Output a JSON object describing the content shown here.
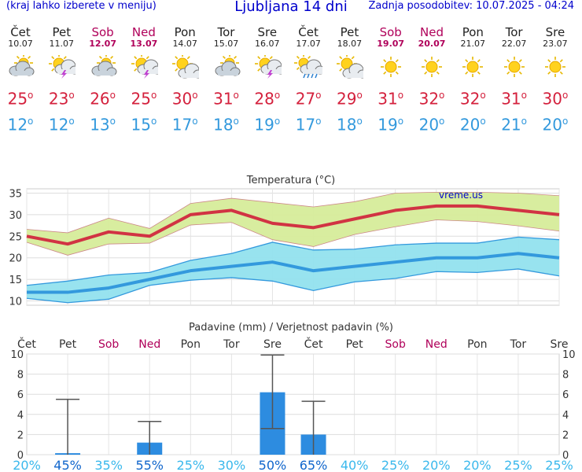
{
  "header": {
    "menu_hint": "(kraj lahko izberete v meniju)",
    "title": "Ljubljana 14 dni",
    "updated": "Zadnja posodobitev: 10.07.2025 - 04:24"
  },
  "days": [
    {
      "name": "Čet",
      "date": "10.07",
      "weekend": false,
      "icon": "partly-cloudy-icon",
      "tmax": "25",
      "tmin": "12"
    },
    {
      "name": "Pet",
      "date": "11.07",
      "weekend": false,
      "icon": "sun-thunder-icon",
      "tmax": "23",
      "tmin": "12"
    },
    {
      "name": "Sob",
      "date": "12.07",
      "weekend": true,
      "icon": "partly-cloudy-icon",
      "tmax": "26",
      "tmin": "13"
    },
    {
      "name": "Ned",
      "date": "13.07",
      "weekend": true,
      "icon": "sun-thunder-icon",
      "tmax": "25",
      "tmin": "15"
    },
    {
      "name": "Pon",
      "date": "14.07",
      "weekend": false,
      "icon": "sun-cloud-icon",
      "tmax": "30",
      "tmin": "17"
    },
    {
      "name": "Tor",
      "date": "15.07",
      "weekend": false,
      "icon": "partly-cloudy-icon",
      "tmax": "31",
      "tmin": "18"
    },
    {
      "name": "Sre",
      "date": "16.07",
      "weekend": false,
      "icon": "sun-thunder-icon",
      "tmax": "28",
      "tmin": "19"
    },
    {
      "name": "Čet",
      "date": "17.07",
      "weekend": false,
      "icon": "sun-rain-icon",
      "tmax": "27",
      "tmin": "17"
    },
    {
      "name": "Pet",
      "date": "18.07",
      "weekend": false,
      "icon": "sun-cloud-icon",
      "tmax": "29",
      "tmin": "18"
    },
    {
      "name": "Sob",
      "date": "19.07",
      "weekend": true,
      "icon": "sun-icon",
      "tmax": "31",
      "tmin": "19"
    },
    {
      "name": "Ned",
      "date": "20.07",
      "weekend": true,
      "icon": "sun-icon",
      "tmax": "32",
      "tmin": "20"
    },
    {
      "name": "Pon",
      "date": "21.07",
      "weekend": false,
      "icon": "sun-icon",
      "tmax": "32",
      "tmin": "20"
    },
    {
      "name": "Tor",
      "date": "22.07",
      "weekend": false,
      "icon": "sun-icon",
      "tmax": "31",
      "tmin": "21"
    },
    {
      "name": "Sre",
      "date": "23.07",
      "weekend": false,
      "icon": "sun-icon",
      "tmax": "30",
      "tmin": "20"
    }
  ],
  "degree_symbol": "o",
  "colors": {
    "title": "#0000cc",
    "weekend": "#b0005a",
    "tmax": "#d4213d",
    "tmin": "#3399dd",
    "max_band": "#d6ec9a",
    "min_band": "#92e2ee",
    "min_line": "#3399dd",
    "max_line": "#d13343",
    "bar": "#2d8ce0",
    "prob": "#3ab8ec"
  },
  "chart_data": [
    {
      "type": "line",
      "title": "Temperatura (°C)",
      "watermark": "vreme.us",
      "ylim": [
        9,
        36
      ],
      "yticks": [
        "10",
        "15",
        "20",
        "25",
        "30",
        "35"
      ],
      "series": [
        {
          "name": "max",
          "values": [
            25,
            23.2,
            26,
            25,
            30,
            31,
            28,
            27,
            29,
            31,
            32,
            32,
            31,
            30
          ],
          "upper": [
            26.6,
            25.8,
            29.2,
            26.8,
            32.6,
            33.8,
            32.8,
            31.8,
            33,
            35,
            35.2,
            35.2,
            35,
            34.4
          ],
          "lower": [
            23.6,
            20.6,
            23.2,
            23.4,
            27.6,
            28.2,
            24.2,
            22.6,
            25.4,
            27.2,
            28.8,
            28.4,
            27.4,
            26.2
          ]
        },
        {
          "name": "min",
          "values": [
            12,
            12,
            13,
            15,
            17,
            18,
            19,
            17,
            18,
            19,
            20,
            20,
            21,
            20
          ],
          "upper": [
            13.6,
            14.6,
            16,
            16.6,
            19.4,
            21,
            23.6,
            21.8,
            22,
            23,
            23.4,
            23.4,
            24.8,
            24.2
          ],
          "lower": [
            10.6,
            9.6,
            10.4,
            13.6,
            14.8,
            15.4,
            14.6,
            12.4,
            14.4,
            15.2,
            16.8,
            16.6,
            17.4,
            15.8
          ]
        }
      ]
    },
    {
      "type": "bar",
      "title": "Padavine (mm) / Verjetnost padavin (%)",
      "ylim": [
        0,
        10
      ],
      "yticks": [
        "0",
        "2",
        "4",
        "6",
        "8",
        "10"
      ],
      "categories": [
        "Čet",
        "Pet",
        "Sob",
        "Ned",
        "Pon",
        "Tor",
        "Sre",
        "Čet",
        "Pet",
        "Sob",
        "Ned",
        "Pon",
        "Tor",
        "Sre"
      ],
      "precip": [
        0,
        0.15,
        0,
        1.2,
        0,
        0,
        6.2,
        2,
        0,
        0,
        0,
        0,
        0,
        0
      ],
      "error_low": [
        null,
        0,
        null,
        0,
        null,
        null,
        2.6,
        0,
        null,
        null,
        null,
        null,
        null,
        null
      ],
      "error_high": [
        null,
        5.5,
        null,
        3.3,
        null,
        null,
        9.9,
        5.3,
        null,
        null,
        null,
        null,
        null,
        null
      ],
      "probability": [
        "20%",
        "45%",
        "35%",
        "55%",
        "25%",
        "30%",
        "50%",
        "65%",
        "40%",
        "25%",
        "20%",
        "20%",
        "25%",
        "25%"
      ],
      "prob_strong": [
        false,
        true,
        false,
        true,
        false,
        false,
        true,
        true,
        false,
        false,
        false,
        false,
        false,
        false
      ]
    }
  ]
}
